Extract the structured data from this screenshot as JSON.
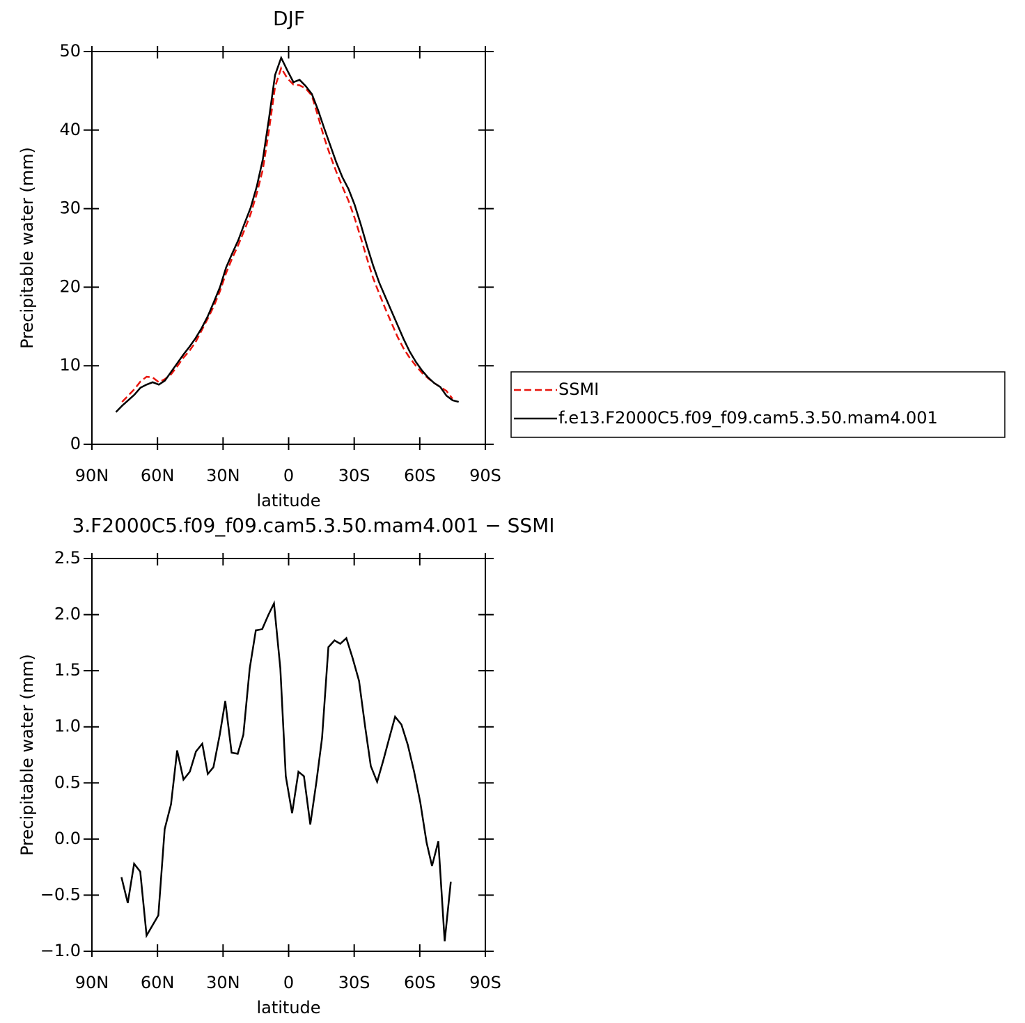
{
  "chart_data": [
    {
      "type": "line",
      "title": "DJF",
      "xlabel": "latitude",
      "ylabel": "Precipitable water (mm)",
      "xlim": [
        90,
        -90
      ],
      "xticks": [
        {
          "value": 90,
          "label": "90N"
        },
        {
          "value": 60,
          "label": "60N"
        },
        {
          "value": 30,
          "label": "30N"
        },
        0,
        {
          "value": -30,
          "label": "30S"
        },
        {
          "value": -60,
          "label": "60S"
        },
        {
          "value": -90,
          "label": "90S"
        }
      ],
      "ylim": [
        0,
        50
      ],
      "yticks": [
        0,
        10,
        20,
        30,
        40,
        50
      ],
      "legend": "right",
      "x": [
        79,
        76.2,
        73.4,
        70.6,
        67.8,
        65,
        62.2,
        59.4,
        56.6,
        53.8,
        51,
        48.2,
        45.4,
        42.6,
        39.8,
        37,
        34.2,
        31.4,
        28.6,
        25.8,
        23,
        20.2,
        17.4,
        14.6,
        11.8,
        9,
        6.2,
        3.4,
        0.6,
        -2.2,
        -5,
        -7.8,
        -10.6,
        -13.4,
        -16.2,
        -19,
        -21.8,
        -24.6,
        -27.4,
        -30.2,
        -33,
        -35.8,
        -38.6,
        -41.4,
        -44.2,
        -47,
        -49.8,
        -52.6,
        -55.4,
        -58.2,
        -61,
        -63.8,
        -66.6,
        -69.4,
        -72.2,
        -75,
        -77.8
      ],
      "series": [
        {
          "name": "SSMI",
          "color": "#e8140c",
          "style": "dashed",
          "values": [
            null,
            5.4,
            6.2,
            7.0,
            8.0,
            8.6,
            8.5,
            7.9,
            8.3,
            8.9,
            9.9,
            11.0,
            11.9,
            13.0,
            14.5,
            16.0,
            17.6,
            19.5,
            21.8,
            23.7,
            25.4,
            27.3,
            29.3,
            31.9,
            35.0,
            40.0,
            45.5,
            47.9,
            46.6,
            45.8,
            45.7,
            45.3,
            44.4,
            41.8,
            39.1,
            36.8,
            34.7,
            32.8,
            31.0,
            28.8,
            26.3,
            23.7,
            21.2,
            19.2,
            17.3,
            15.5,
            13.7,
            12.2,
            11.0,
            10.0,
            9.1,
            8.4,
            7.8,
            7.3,
            6.8,
            5.8,
            null
          ]
        },
        {
          "name": "f.e13.F2000C5.f09_f09.cam5.3.50.mam4.001",
          "color": "#000000",
          "style": "solid",
          "values": [
            4.1,
            4.9,
            5.6,
            6.3,
            7.2,
            7.6,
            7.9,
            7.6,
            8.1,
            9.2,
            10.3,
            11.4,
            12.4,
            13.5,
            14.8,
            16.3,
            18.1,
            20.0,
            22.5,
            24.3,
            26.0,
            28.1,
            30.1,
            32.8,
            36.3,
            41.5,
            47.0,
            49.2,
            47.6,
            46.1,
            46.4,
            45.6,
            44.6,
            42.6,
            40.3,
            38.1,
            35.9,
            34.0,
            32.5,
            30.5,
            28.0,
            25.3,
            22.8,
            20.6,
            18.8,
            17.0,
            15.2,
            13.4,
            11.8,
            10.5,
            9.4,
            8.5,
            7.8,
            7.3,
            6.2,
            5.6,
            5.4
          ]
        }
      ]
    },
    {
      "type": "line",
      "title": "3.F2000C5.f09_f09.cam5.3.50.mam4.001 − SSMI",
      "xlabel": "latitude",
      "ylabel": "Precipitable water (mm)",
      "xlim": [
        90,
        -90
      ],
      "xticks": [
        {
          "value": 90,
          "label": "90N"
        },
        {
          "value": 60,
          "label": "60N"
        },
        {
          "value": 30,
          "label": "30N"
        },
        0,
        {
          "value": -30,
          "label": "30S"
        },
        {
          "value": -60,
          "label": "60S"
        },
        {
          "value": -90,
          "label": "90S"
        }
      ],
      "ylim": [
        -1.0,
        2.5
      ],
      "yticks": [
        {
          "value": 2.5,
          "label": "2.5"
        },
        {
          "value": 2.0,
          "label": "2.0"
        },
        {
          "value": 1.5,
          "label": "1.5"
        },
        {
          "value": 1.0,
          "label": "1.0"
        },
        {
          "value": 0.5,
          "label": "0.5"
        },
        {
          "value": 0.0,
          "label": "0.0"
        },
        {
          "value": -0.5,
          "label": "−0.5"
        },
        {
          "value": -1.0,
          "label": "−1.0"
        }
      ],
      "x": [
        76.5,
        73.6,
        70.7,
        67.9,
        65,
        59.6,
        56.7,
        53.8,
        51,
        48.1,
        45.2,
        42.4,
        39.5,
        37,
        34.4,
        31.5,
        29,
        26.1,
        23.3,
        20.7,
        17.8,
        15,
        12.1,
        9.2,
        6.7,
        3.8,
        1.3,
        -1.6,
        -4.5,
        -7,
        -9.9,
        -12.7,
        -15.3,
        -18.2,
        -21,
        -23.6,
        -26.4,
        -29.3,
        -32.2,
        -35,
        -37.6,
        -40.5,
        -43.3,
        -46.2,
        -48.7,
        -51.6,
        -54.5,
        -57.3,
        -60.2,
        -63.1,
        -65.6,
        -68.5,
        -71.4,
        -74.2
      ],
      "series": [
        {
          "color": "#000000",
          "style": "solid",
          "values": [
            -0.34,
            -0.57,
            -0.22,
            -0.29,
            -0.86,
            -0.68,
            0.09,
            0.31,
            0.79,
            0.53,
            0.6,
            0.78,
            0.85,
            0.58,
            0.64,
            0.93,
            1.23,
            0.77,
            0.76,
            0.93,
            1.52,
            1.86,
            1.87,
            2.0,
            2.1,
            1.52,
            0.56,
            0.23,
            0.6,
            0.56,
            0.13,
            0.51,
            0.9,
            1.71,
            1.77,
            1.74,
            1.79,
            1.61,
            1.41,
            1.0,
            0.65,
            0.51,
            0.7,
            0.91,
            1.09,
            1.02,
            0.84,
            0.61,
            0.33,
            -0.03,
            -0.24,
            -0.02,
            -0.91,
            -0.38
          ]
        }
      ]
    }
  ]
}
